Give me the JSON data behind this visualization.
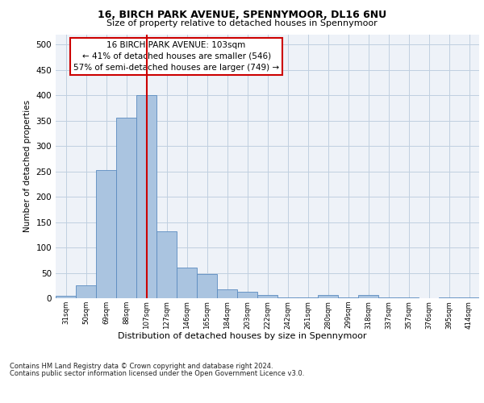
{
  "title1": "16, BIRCH PARK AVENUE, SPENNYMOOR, DL16 6NU",
  "title2": "Size of property relative to detached houses in Spennymoor",
  "xlabel": "Distribution of detached houses by size in Spennymoor",
  "ylabel": "Number of detached properties",
  "categories": [
    "31sqm",
    "50sqm",
    "69sqm",
    "88sqm",
    "107sqm",
    "127sqm",
    "146sqm",
    "165sqm",
    "184sqm",
    "203sqm",
    "222sqm",
    "242sqm",
    "261sqm",
    "280sqm",
    "299sqm",
    "318sqm",
    "337sqm",
    "357sqm",
    "376sqm",
    "395sqm",
    "414sqm"
  ],
  "values": [
    5,
    25,
    253,
    355,
    400,
    132,
    60,
    48,
    17,
    13,
    6,
    2,
    2,
    6,
    2,
    6,
    2,
    1,
    0,
    1,
    2
  ],
  "bar_color": "#aac4e0",
  "bar_edge_color": "#5a8bbf",
  "vline_color": "#cc0000",
  "annotation_text": "16 BIRCH PARK AVENUE: 103sqm\n← 41% of detached houses are smaller (546)\n57% of semi-detached houses are larger (749) →",
  "annotation_box_color": "#ffffff",
  "annotation_box_edge": "#cc0000",
  "footer1": "Contains HM Land Registry data © Crown copyright and database right 2024.",
  "footer2": "Contains public sector information licensed under the Open Government Licence v3.0.",
  "ylim": [
    0,
    520
  ],
  "yticks": [
    0,
    50,
    100,
    150,
    200,
    250,
    300,
    350,
    400,
    450,
    500
  ],
  "background_color": "#eef2f8"
}
